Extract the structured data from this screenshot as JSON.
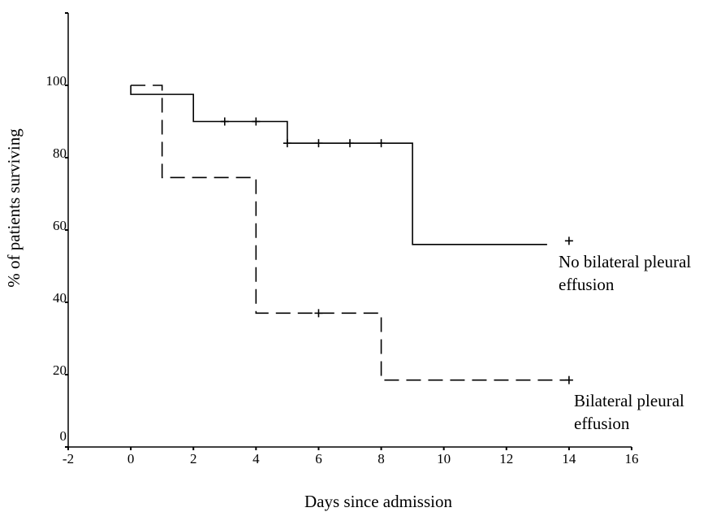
{
  "chart_data": {
    "type": "line",
    "subtype": "kaplan-meier step",
    "title": "",
    "xlabel": "Days since admission",
    "ylabel": "% of patients surviving",
    "xlim": [
      -2,
      16
    ],
    "ylim": [
      0,
      120
    ],
    "x_ticks": [
      -2,
      0,
      2,
      4,
      6,
      8,
      10,
      12,
      14,
      16
    ],
    "y_ticks": [
      0,
      20,
      40,
      60,
      80,
      100
    ],
    "grid": false,
    "series": [
      {
        "line_style": "solid",
        "color": "#000000",
        "steps": [
          [
            0,
            97.5
          ],
          [
            2,
            90
          ],
          [
            5,
            84
          ],
          [
            9,
            56
          ],
          [
            13.3,
            56
          ]
        ],
        "censored": [
          [
            3,
            90
          ],
          [
            4,
            90
          ],
          [
            5,
            84
          ],
          [
            6,
            84
          ],
          [
            7,
            84
          ],
          [
            8,
            84
          ],
          [
            14,
            57
          ]
        ],
        "annotation": [
          "No bilateral pleural",
          "effusion"
        ]
      },
      {
        "line_style": "dashed",
        "color": "#000000",
        "steps": [
          [
            0,
            100
          ],
          [
            1,
            74.5
          ],
          [
            4,
            37
          ],
          [
            8,
            18.5
          ],
          [
            14,
            18.5
          ]
        ],
        "censored": [
          [
            6,
            37
          ],
          [
            14,
            18.5
          ]
        ],
        "annotation": [
          "Bilateral pleural",
          "effusion"
        ]
      }
    ]
  }
}
